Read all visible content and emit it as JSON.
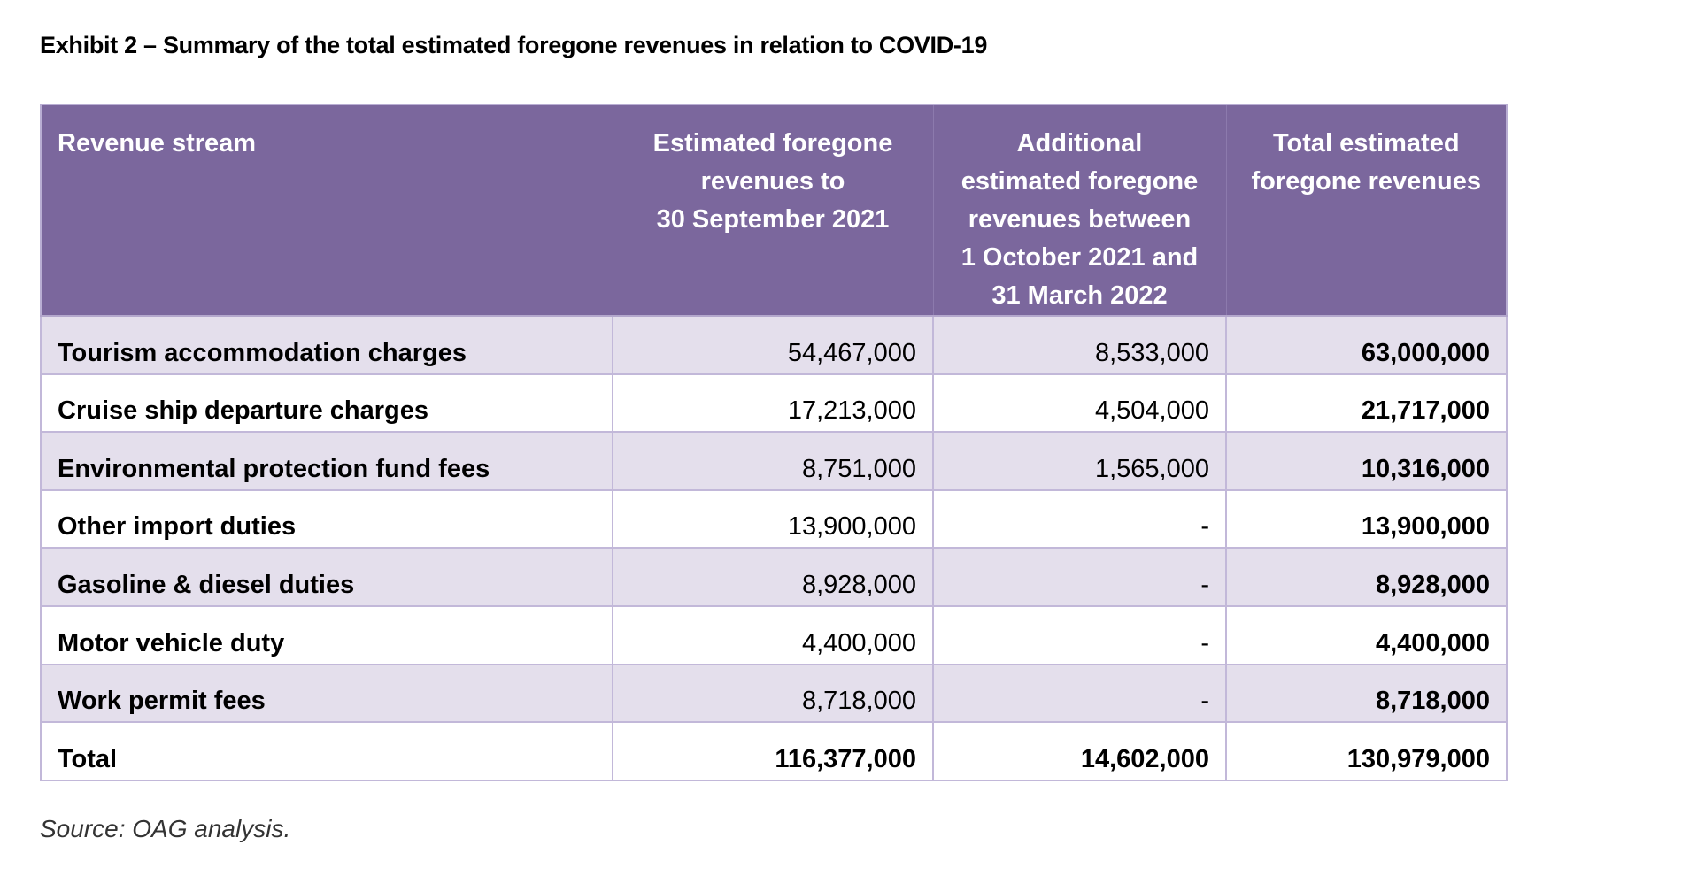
{
  "title": "Exhibit 2 – Summary of the total estimated foregone revenues in relation to COVID-19",
  "table": {
    "headers": [
      {
        "lines": [
          "Revenue stream"
        ]
      },
      {
        "lines": [
          "Estimated foregone",
          "revenues to",
          "30 September 2021"
        ]
      },
      {
        "lines": [
          "Additional",
          "estimated foregone",
          "revenues between",
          "1 October 2021 and",
          "31 March 2022"
        ]
      },
      {
        "lines": [
          "Total estimated",
          "foregone revenues"
        ]
      }
    ],
    "rows": [
      {
        "stream": "Tourism accommodation charges",
        "to_sep_2021": "54,467,000",
        "oct2021_mar2022": "8,533,000",
        "total": "63,000,000"
      },
      {
        "stream": "Cruise ship departure charges",
        "to_sep_2021": "17,213,000",
        "oct2021_mar2022": "4,504,000",
        "total": "21,717,000"
      },
      {
        "stream": "Environmental protection fund fees",
        "to_sep_2021": "8,751,000",
        "oct2021_mar2022": "1,565,000",
        "total": "10,316,000"
      },
      {
        "stream": "Other import duties",
        "to_sep_2021": "13,900,000",
        "oct2021_mar2022": "-",
        "total": "13,900,000"
      },
      {
        "stream": "Gasoline & diesel duties",
        "to_sep_2021": "8,928,000",
        "oct2021_mar2022": "-",
        "total": "8,928,000"
      },
      {
        "stream": "Motor vehicle duty",
        "to_sep_2021": "4,400,000",
        "oct2021_mar2022": "-",
        "total": "4,400,000"
      },
      {
        "stream": "Work permit fees",
        "to_sep_2021": "8,718,000",
        "oct2021_mar2022": "-",
        "total": "8,718,000"
      }
    ],
    "total_row": {
      "stream": "Total",
      "to_sep_2021": "116,377,000",
      "oct2021_mar2022": "14,602,000",
      "total": "130,979,000"
    }
  },
  "source": "Source: OAG analysis.",
  "colors": {
    "header_bg": "#7b679d",
    "shaded_row_bg": "#e4dfec",
    "border": "#c2b8d9"
  }
}
